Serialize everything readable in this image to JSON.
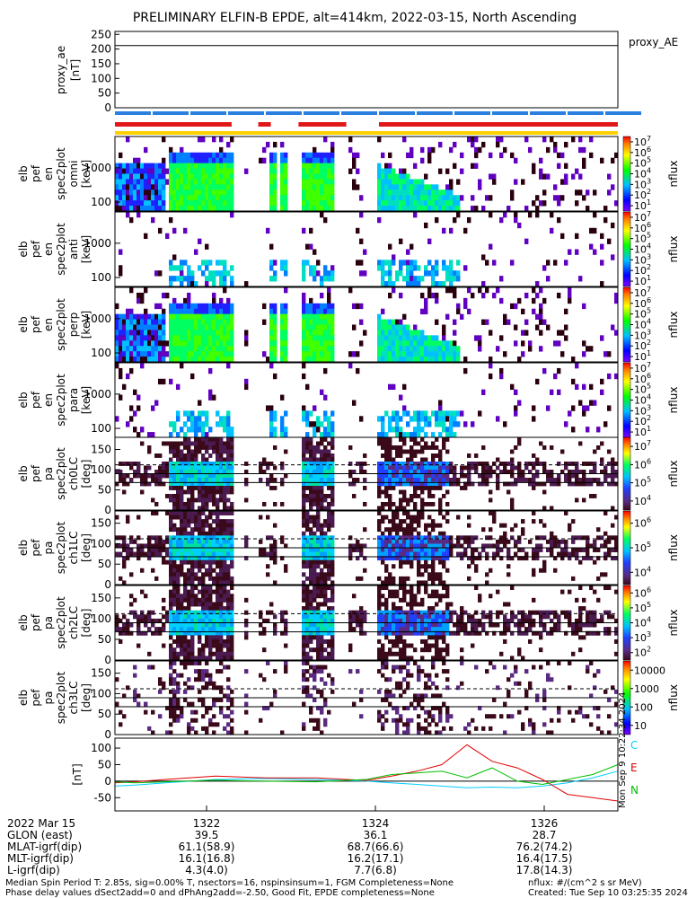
{
  "title": "PRELIMINARY ELFIN-B EPDE, alt=414km, 2022-03-15, North Ascending",
  "chart_data": [
    {
      "type": "line",
      "panel": "proxy_ae",
      "ylabel": [
        "proxy_ae",
        "[nT]"
      ],
      "ylim": [
        0,
        260
      ],
      "yticks": [
        0,
        50,
        100,
        150,
        200,
        250
      ],
      "legend": "proxy_AE",
      "series": [
        {
          "name": "proxy_AE",
          "x": [
            "13:20:40",
            "13:27:40"
          ],
          "y": [
            212,
            212
          ]
        }
      ]
    },
    {
      "type": "heatmap",
      "panel": "en_para",
      "ylabel": [
        "elb",
        "pef",
        "en",
        "spec2plot",
        "omni",
        "[keV]"
      ],
      "yticks": [
        "100",
        "1000"
      ],
      "colorbar": {
        "label": "nflux",
        "scale": "log",
        "range": [
          1,
          10000000
        ],
        "ticks": [
          "10^1",
          "10^2",
          "10^3",
          "10^4",
          "10^5",
          "10^6",
          "10^7"
        ]
      }
    },
    {
      "type": "heatmap",
      "panel": "en_anti",
      "ylabel": [
        "elb",
        "pef",
        "en",
        "spec2plot",
        "anti",
        "[keV]"
      ],
      "yticks": [
        "100",
        "1000"
      ],
      "colorbar": {
        "label": "nflux",
        "scale": "log",
        "range": [
          1,
          10000000
        ],
        "ticks": [
          "10^1",
          "10^2",
          "10^3",
          "10^4",
          "10^5",
          "10^6",
          "10^7"
        ]
      }
    },
    {
      "type": "heatmap",
      "panel": "en_perp",
      "ylabel": [
        "elb",
        "pef",
        "en",
        "spec2plot",
        "perp",
        "[keV]"
      ],
      "yticks": [
        "100",
        "1000"
      ],
      "colorbar": {
        "label": "nflux",
        "scale": "log",
        "range": [
          1,
          10000000
        ],
        "ticks": [
          "10^1",
          "10^2",
          "10^3",
          "10^4",
          "10^5",
          "10^6",
          "10^7"
        ]
      }
    },
    {
      "type": "heatmap",
      "panel": "en_para2",
      "ylabel": [
        "elb",
        "pef",
        "en",
        "spec2plot",
        "para",
        "[keV]"
      ],
      "yticks": [
        "100",
        "1000"
      ],
      "colorbar": {
        "label": "nflux",
        "scale": "log",
        "range": [
          1,
          10000000
        ],
        "ticks": [
          "10^1",
          "10^2",
          "10^3",
          "10^4",
          "10^5",
          "10^6",
          "10^7"
        ]
      }
    },
    {
      "type": "heatmap",
      "panel": "pa_ch0",
      "ylabel": [
        "elb",
        "pef",
        "pa",
        "spec2plot",
        "ch0LC",
        "[deg]"
      ],
      "ylim": [
        0,
        180
      ],
      "yticks": [
        0,
        50,
        100,
        150
      ],
      "colorbar": {
        "label": "nflux",
        "scale": "log",
        "range": [
          1000,
          10000000
        ],
        "ticks": [
          "10^4",
          "10^5",
          "10^6",
          "10^7"
        ]
      }
    },
    {
      "type": "heatmap",
      "panel": "pa_ch1",
      "ylabel": [
        "elb",
        "pef",
        "pa",
        "spec2plot",
        "ch1LC",
        "[deg]"
      ],
      "ylim": [
        0,
        180
      ],
      "yticks": [
        0,
        50,
        100,
        150
      ],
      "colorbar": {
        "label": "nflux",
        "scale": "log",
        "range": [
          1000,
          10000000
        ],
        "ticks": [
          "10^4",
          "10^5",
          "10^6"
        ]
      }
    },
    {
      "type": "heatmap",
      "panel": "pa_ch2",
      "ylabel": [
        "elb",
        "pef",
        "pa",
        "spec2plot",
        "ch2LC",
        "[deg]"
      ],
      "ylim": [
        0,
        180
      ],
      "yticks": [
        0,
        50,
        100,
        150
      ],
      "colorbar": {
        "label": "nflux",
        "scale": "log",
        "range": [
          100,
          1000000
        ],
        "ticks": [
          "10^2",
          "10^3",
          "10^4",
          "10^5",
          "10^6"
        ]
      }
    },
    {
      "type": "heatmap",
      "panel": "pa_ch3",
      "ylabel": [
        "elb",
        "pef",
        "pa",
        "spec2plot",
        "ch3LC",
        "[deg]"
      ],
      "ylim": [
        0,
        180
      ],
      "yticks": [
        0,
        50,
        100,
        150
      ],
      "colorbar": {
        "label": "nflux",
        "scale": "log",
        "range": [
          10,
          10000
        ],
        "ticks": [
          "10",
          "100",
          "1000",
          "10000"
        ]
      }
    },
    {
      "type": "line",
      "panel": "dB",
      "ylabel": [
        "[nT]"
      ],
      "ylim": [
        -90,
        130
      ],
      "yticks": [
        -50,
        0,
        50,
        100
      ],
      "legend_labels": [
        "C",
        "E",
        "N"
      ],
      "legend_colors": [
        "#00d0ff",
        "#e00000",
        "#00c000"
      ],
      "side_text": "Mon Sep 9 10:22:34 2024",
      "series": [
        {
          "name": "C",
          "color": "#00d0ff",
          "x": [
            0,
            0.04,
            0.1,
            0.2,
            0.3,
            0.4,
            0.5,
            0.55,
            0.6,
            0.65,
            0.7,
            0.75,
            0.8,
            0.85,
            0.9,
            0.95,
            1.0
          ],
          "y": [
            -15,
            -12,
            -5,
            5,
            8,
            5,
            0,
            -5,
            -10,
            -15,
            -20,
            -18,
            -20,
            -15,
            -5,
            10,
            30
          ]
        },
        {
          "name": "E",
          "color": "#e00000",
          "x": [
            0,
            0.04,
            0.1,
            0.2,
            0.3,
            0.4,
            0.5,
            0.55,
            0.6,
            0.65,
            0.7,
            0.75,
            0.8,
            0.85,
            0.9,
            0.95,
            1.0
          ],
          "y": [
            -5,
            -2,
            5,
            15,
            10,
            10,
            2,
            15,
            30,
            50,
            110,
            60,
            40,
            5,
            -40,
            -50,
            -60
          ]
        },
        {
          "name": "N",
          "color": "#00c000",
          "x": [
            0,
            0.04,
            0.1,
            0.2,
            0.3,
            0.4,
            0.5,
            0.55,
            0.6,
            0.65,
            0.7,
            0.75,
            0.8,
            0.85,
            0.9,
            0.95,
            1.0
          ],
          "y": [
            -2,
            -5,
            -2,
            3,
            0,
            -2,
            5,
            20,
            25,
            30,
            10,
            40,
            0,
            -10,
            5,
            20,
            50
          ]
        }
      ]
    }
  ],
  "xaxis": {
    "date": "2022 Mar 15",
    "ticks": [
      "1322",
      "1324",
      "1326"
    ],
    "rows": [
      {
        "label": "GLON (east)",
        "values": [
          "39.5",
          "36.1",
          "28.7"
        ]
      },
      {
        "label": "MLAT-igrf(dip)",
        "values": [
          "61.1(58.9)",
          "68.7(66.6)",
          "76.2(74.2)"
        ]
      },
      {
        "label": "MLT-igrf(dip)",
        "values": [
          "16.1(16.8)",
          "16.2(17.1)",
          "16.4(17.5)"
        ]
      },
      {
        "label": "L-igrf(dip)",
        "values": [
          "4.3(4.0)",
          "7.7(6.8)",
          "17.8(14.3)"
        ]
      }
    ]
  },
  "footer": {
    "line1": "Median Spin Period T: 2.85s, sig=0.00% T, nsectors=16, nspinsinsum=1, FGM Completeness=None",
    "line2": "Phase delay values dSect2add=0 and dPhAng2add=-2.50, Good Fit, EPDE completeness=None",
    "units": "nflux: #/(cm^2 s sr MeV)",
    "created": "Created: Tue Sep 10 03:25:35 2024"
  }
}
